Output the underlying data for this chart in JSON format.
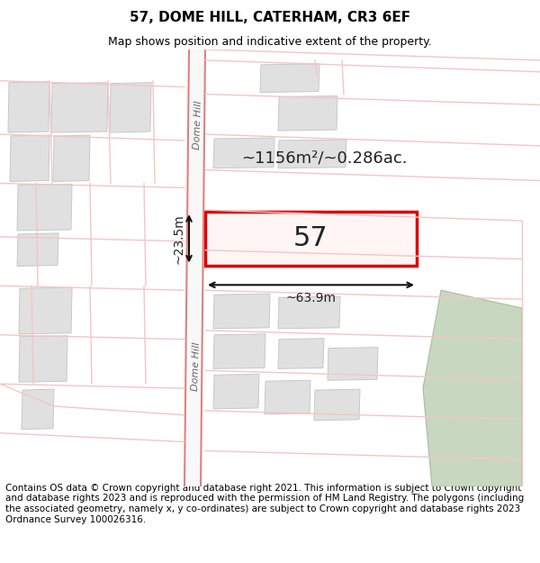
{
  "title": "57, DOME HILL, CATERHAM, CR3 6EF",
  "subtitle": "Map shows position and indicative extent of the property.",
  "footer": "Contains OS data © Crown copyright and database right 2021. This information is subject to Crown copyright and database rights 2023 and is reproduced with the permission of HM Land Registry. The polygons (including the associated geometry, namely x, y co-ordinates) are subject to Crown copyright and database rights 2023 Ordnance Survey 100026316.",
  "bg_color": "#ffffff",
  "map_bg": "#ffffff",
  "road_color": "#f5c5c5",
  "road_edge_color": "#e08080",
  "building_color": "#e0e0e0",
  "building_edge_color": "#c8c8c8",
  "highlight_color": "#dd0000",
  "green_color": "#c8d8c0",
  "green_edge_color": "#aabaa0",
  "street_label": "Dome Hill",
  "area_label": "~1156m²/~0.286ac.",
  "width_label": "~63.9m",
  "height_label": "~23.5m",
  "number_label": "57",
  "title_fontsize": 11,
  "subtitle_fontsize": 9,
  "footer_fontsize": 7.5,
  "label_fontsize": 13,
  "number_fontsize": 22,
  "street_fontsize": 8
}
